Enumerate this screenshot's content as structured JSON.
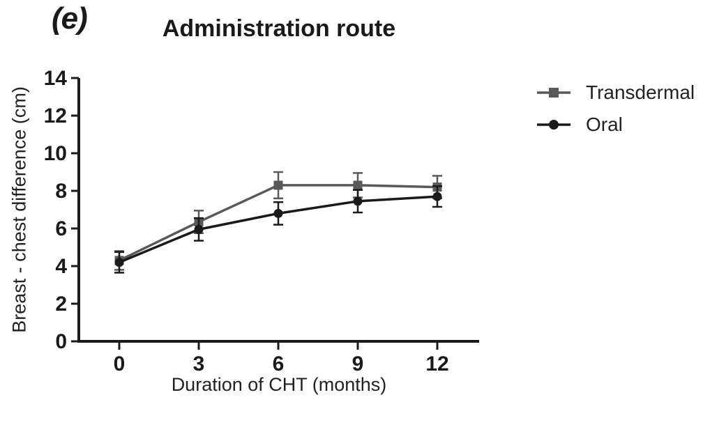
{
  "panel_label": "(e)",
  "chart_data": {
    "type": "line",
    "title": "Administration route",
    "xlabel": "Duration of CHT (months)",
    "ylabel": "Breast - chest difference (cm)",
    "x": [
      0,
      3,
      6,
      9,
      12
    ],
    "xticks": [
      "0",
      "3",
      "6",
      "9",
      "12"
    ],
    "yticks": [
      0,
      2,
      4,
      6,
      8,
      10,
      12,
      14
    ],
    "ylim": [
      0,
      14
    ],
    "grid": false,
    "legend_position": "right",
    "axis_color": "#1a1a1a",
    "series": [
      {
        "name": "Transdermal",
        "marker": "square",
        "color": "#58595b",
        "values": [
          4.3,
          6.35,
          8.3,
          8.3,
          8.2
        ],
        "errors": [
          0.5,
          0.6,
          0.7,
          0.65,
          0.6
        ]
      },
      {
        "name": "Oral",
        "marker": "circle",
        "color": "#1a1a1a",
        "values": [
          4.2,
          5.95,
          6.8,
          7.45,
          7.7
        ],
        "errors": [
          0.55,
          0.6,
          0.6,
          0.6,
          0.55
        ]
      }
    ]
  }
}
